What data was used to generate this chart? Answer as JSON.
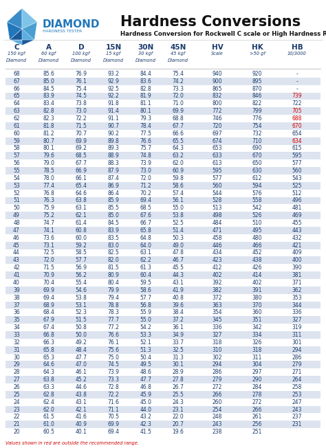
{
  "title": "Hardness Conversions",
  "subtitle": "Hardness Conversion for Rockwell C scale or High Hardness Range",
  "headers": [
    "C",
    "A",
    "D",
    "15N",
    "30N",
    "45N",
    "HV",
    "HK",
    "HB"
  ],
  "subheaders": [
    "150 kgf\nDiamond",
    "60 kgf\nDiamond",
    "100 kgf\nDiamond",
    "15 kgf\nDiamond",
    "30 kgf\nDiamond",
    "45 kgf\nDiamond",
    "Scale",
    ">50 gf",
    "10/3000"
  ],
  "rows": [
    [
      68,
      85.6,
      76.9,
      93.2,
      84.4,
      75.4,
      940,
      920,
      "-"
    ],
    [
      67,
      85.0,
      76.1,
      92.9,
      83.6,
      74.2,
      900,
      895,
      "-"
    ],
    [
      66,
      84.5,
      75.4,
      92.5,
      82.8,
      73.3,
      865,
      870,
      "-"
    ],
    [
      65,
      83.9,
      74.5,
      92.2,
      81.9,
      72.0,
      832,
      846,
      "739"
    ],
    [
      64,
      83.4,
      73.8,
      91.8,
      81.1,
      71.0,
      800,
      822,
      722
    ],
    [
      63,
      82.8,
      73.0,
      91.4,
      80.1,
      69.9,
      772,
      799,
      "705"
    ],
    [
      62,
      82.3,
      72.2,
      91.1,
      79.3,
      68.8,
      746,
      776,
      "688"
    ],
    [
      61,
      81.8,
      71.5,
      90.7,
      78.4,
      67.7,
      720,
      754,
      "670"
    ],
    [
      60,
      81.2,
      70.7,
      90.2,
      77.5,
      66.6,
      697,
      732,
      654
    ],
    [
      59,
      80.7,
      69.9,
      89.8,
      76.6,
      65.5,
      674,
      710,
      "634"
    ],
    [
      58,
      80.1,
      69.2,
      89.3,
      75.7,
      64.3,
      653,
      690,
      615
    ],
    [
      57,
      79.6,
      68.5,
      88.9,
      74.8,
      63.2,
      633,
      670,
      595
    ],
    [
      56,
      79.0,
      67.7,
      88.3,
      73.9,
      62.0,
      613,
      650,
      577
    ],
    [
      55,
      78.5,
      66.9,
      87.9,
      73.0,
      60.9,
      595,
      630,
      560
    ],
    [
      54,
      78.0,
      66.1,
      87.4,
      72.0,
      59.8,
      577,
      612,
      543
    ],
    [
      53,
      77.4,
      65.4,
      86.9,
      71.2,
      58.6,
      560,
      594,
      525
    ],
    [
      52,
      76.8,
      64.6,
      86.4,
      70.2,
      57.4,
      544,
      576,
      512
    ],
    [
      51,
      76.3,
      63.8,
      85.9,
      69.4,
      56.1,
      528,
      558,
      496
    ],
    [
      50,
      75.9,
      63.1,
      85.5,
      68.5,
      55.0,
      513,
      542,
      481
    ],
    [
      49,
      75.2,
      62.1,
      85.0,
      67.6,
      53.8,
      498,
      526,
      469
    ],
    [
      48,
      74.7,
      61.4,
      84.5,
      66.7,
      52.5,
      484,
      510,
      455
    ],
    [
      47,
      74.1,
      60.8,
      83.9,
      65.8,
      51.4,
      471,
      495,
      443
    ],
    [
      46,
      73.6,
      60.0,
      83.5,
      64.8,
      50.3,
      458,
      480,
      432
    ],
    [
      45,
      73.1,
      59.2,
      83.0,
      64.0,
      49.0,
      446,
      466,
      421
    ],
    [
      44,
      72.5,
      58.5,
      82.5,
      63.1,
      47.8,
      434,
      452,
      409
    ],
    [
      43,
      72.0,
      57.7,
      82.0,
      62.2,
      46.7,
      423,
      438,
      400
    ],
    [
      42,
      71.5,
      56.9,
      81.5,
      61.3,
      45.5,
      412,
      426,
      390
    ],
    [
      41,
      70.9,
      56.2,
      80.9,
      60.4,
      44.3,
      402,
      414,
      381
    ],
    [
      40,
      70.4,
      55.4,
      80.4,
      59.5,
      43.1,
      392,
      402,
      371
    ],
    [
      39,
      69.9,
      54.6,
      79.9,
      58.6,
      41.9,
      382,
      391,
      362
    ],
    [
      38,
      69.4,
      53.8,
      79.4,
      57.7,
      40.8,
      372,
      380,
      353
    ],
    [
      37,
      68.9,
      53.1,
      78.8,
      56.8,
      39.6,
      363,
      370,
      344
    ],
    [
      36,
      68.4,
      52.3,
      78.3,
      55.9,
      38.4,
      354,
      360,
      336
    ],
    [
      35,
      67.9,
      51.5,
      77.7,
      55.0,
      37.2,
      345,
      351,
      327
    ],
    [
      34,
      67.4,
      50.8,
      77.2,
      54.2,
      36.1,
      336,
      342,
      319
    ],
    [
      33,
      66.8,
      50.0,
      76.6,
      53.3,
      34.9,
      327,
      334,
      311
    ],
    [
      32,
      66.3,
      49.2,
      76.1,
      52.1,
      33.7,
      318,
      326,
      301
    ],
    [
      31,
      65.8,
      48.4,
      75.6,
      51.3,
      32.5,
      310,
      318,
      294
    ],
    [
      30,
      65.3,
      47.7,
      75.0,
      50.4,
      31.3,
      302,
      311,
      286
    ],
    [
      29,
      64.6,
      47.0,
      74.5,
      49.5,
      30.1,
      294,
      304,
      279
    ],
    [
      28,
      64.3,
      46.1,
      73.9,
      48.6,
      28.9,
      286,
      297,
      271
    ],
    [
      27,
      63.8,
      45.2,
      73.3,
      47.7,
      27.8,
      279,
      290,
      264
    ],
    [
      26,
      63.3,
      44.6,
      72.8,
      46.8,
      26.7,
      272,
      284,
      258
    ],
    [
      25,
      62.8,
      43.8,
      72.2,
      45.9,
      25.5,
      266,
      278,
      253
    ],
    [
      24,
      62.4,
      43.1,
      71.6,
      45.0,
      24.3,
      260,
      272,
      247
    ],
    [
      23,
      62.0,
      42.1,
      71.1,
      44.0,
      23.1,
      254,
      266,
      243
    ],
    [
      22,
      61.5,
      41.6,
      70.5,
      43.2,
      22.0,
      248,
      261,
      237
    ],
    [
      21,
      61.0,
      40.9,
      69.9,
      42.3,
      20.7,
      243,
      256,
      231
    ],
    [
      20,
      60.5,
      40.1,
      69.4,
      41.5,
      19.6,
      238,
      251,
      ""
    ]
  ],
  "red_hb_rows": [
    65,
    63,
    62,
    61,
    59
  ],
  "shaded_rows": [
    67,
    65,
    63,
    61,
    59,
    57,
    55,
    53,
    51,
    49,
    47,
    45,
    43,
    41,
    39,
    37,
    35,
    33,
    31,
    29,
    27,
    25,
    23,
    21
  ],
  "footer": "Values shown in red are outside the recommended range.",
  "bg_color": "#ffffff",
  "row_shade": "#dde4f0",
  "header_color": "#1a3a6b",
  "data_color": "#1a3a6b",
  "red_color": "#cc0000",
  "diamond_blue": "#2277bb",
  "title_color": "#111111"
}
